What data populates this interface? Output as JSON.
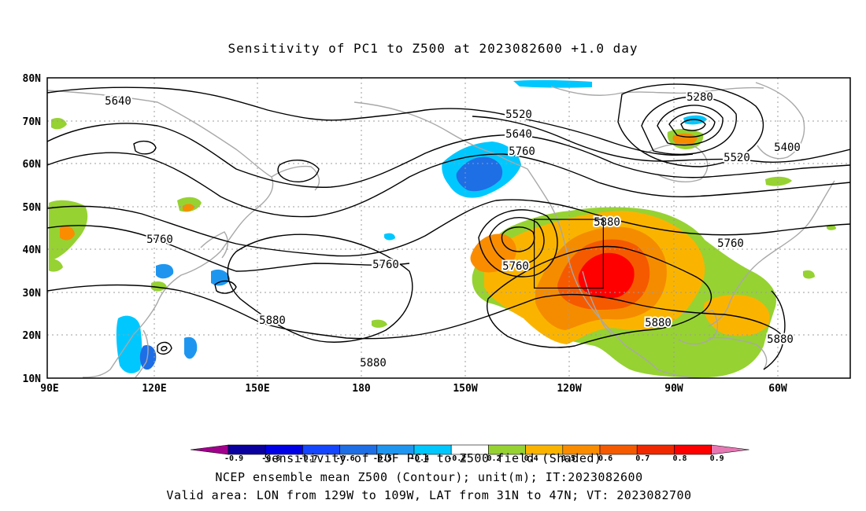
{
  "title": "Sensitivity of PC1 to Z500 at 2023082600 +1.0 day",
  "lat_ticks": [
    "80N",
    "70N",
    "60N",
    "50N",
    "40N",
    "30N",
    "20N",
    "10N"
  ],
  "lon_ticks": [
    "90E",
    "120E",
    "150E",
    "180",
    "150W",
    "120W",
    "90W",
    "60W"
  ],
  "contour_labels": [
    "5640",
    "5520",
    "5640",
    "5760",
    "5280",
    "5400",
    "5520",
    "5760",
    "5760",
    "5880",
    "5760",
    "5760",
    "5880",
    "5880",
    "5880",
    "5880"
  ],
  "colorbar": {
    "labels": [
      "-0.9",
      "-0.8",
      "-0.7",
      "-0.6",
      "-0.5",
      "-0.4",
      "-0.2",
      "0.2",
      "0.4",
      "0.5",
      "0.6",
      "0.7",
      "0.8",
      "0.9"
    ],
    "colors": [
      "#a0008c",
      "#0a00a0",
      "#0000e6",
      "#1446ff",
      "#1e6ee6",
      "#1e96f0",
      "#00c8ff",
      "#ffffff",
      "#96d232",
      "#fab400",
      "#fa8c00",
      "#f55a00",
      "#f02800",
      "#ff0000",
      "#e678b4"
    ]
  },
  "footer": {
    "line1": "Sensitivity of EOF PC1 to Z500 field (Shaded)",
    "line2": "NCEP ensemble mean Z500 (Contour); unit(m); IT:2023082600",
    "line3": "Valid area: LON from 129W to 109W, LAT from 31N to 47N; VT: 2023082700"
  },
  "valid_area": {
    "lon_min": -129,
    "lon_max": -109,
    "lat_min": 31,
    "lat_max": 47
  }
}
